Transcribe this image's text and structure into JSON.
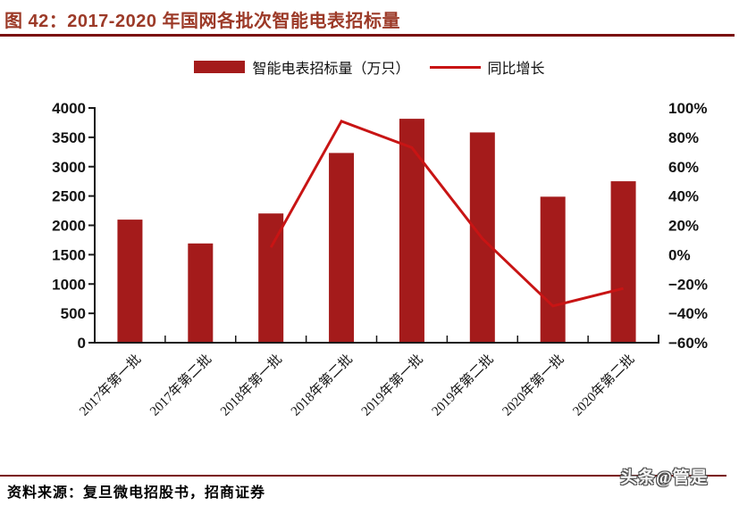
{
  "header": {
    "title": "图 42：2017-2020 年国网各批次智能电表招标量"
  },
  "legend": {
    "bar_label": "智能电表招标量（万只）",
    "line_label": "同比增长"
  },
  "footer": {
    "source_label": "资料来源：",
    "source_text": "复旦微电招股书，招商证券"
  },
  "watermark": {
    "text": "头条@管是"
  },
  "colors": {
    "bar": "#A41B1B",
    "line": "#C81414",
    "title": "#9C3A28",
    "rule": "#7A0E0E",
    "axis": "#1a1a1a"
  },
  "chart_data": {
    "type": "bar",
    "subtype": "bar+line combo, dual axis",
    "title": "2017-2020 年国网各批次智能电表招标量",
    "categories": [
      "2017年第一批",
      "2017年第二批",
      "2018年第一批",
      "2018年第二批",
      "2019年第一批",
      "2019年第二批",
      "2020年第一批",
      "2020年第二批"
    ],
    "series": [
      {
        "name": "智能电表招标量（万只）",
        "type": "bar",
        "axis": "left",
        "values": [
          2098,
          1692,
          2203,
          3233,
          3816,
          3584,
          2488,
          2752
        ]
      },
      {
        "name": "同比增长",
        "type": "line",
        "axis": "right",
        "values_pct": [
          null,
          null,
          5,
          91,
          73,
          11,
          -35,
          -23
        ]
      }
    ],
    "y_left": {
      "min": 0,
      "max": 4000,
      "tick_step": 500,
      "tick_labels": [
        "4000",
        "3500",
        "3000",
        "2500",
        "2000",
        "1500",
        "1000",
        "500",
        "0"
      ]
    },
    "y_right": {
      "min": -60,
      "max": 100,
      "tick_step": 20,
      "tick_labels": [
        "100%",
        "80%",
        "60%",
        "40%",
        "20%",
        "0%",
        "−20%",
        "−40%",
        "−60%"
      ]
    },
    "legend_position": "top",
    "grid": false
  }
}
